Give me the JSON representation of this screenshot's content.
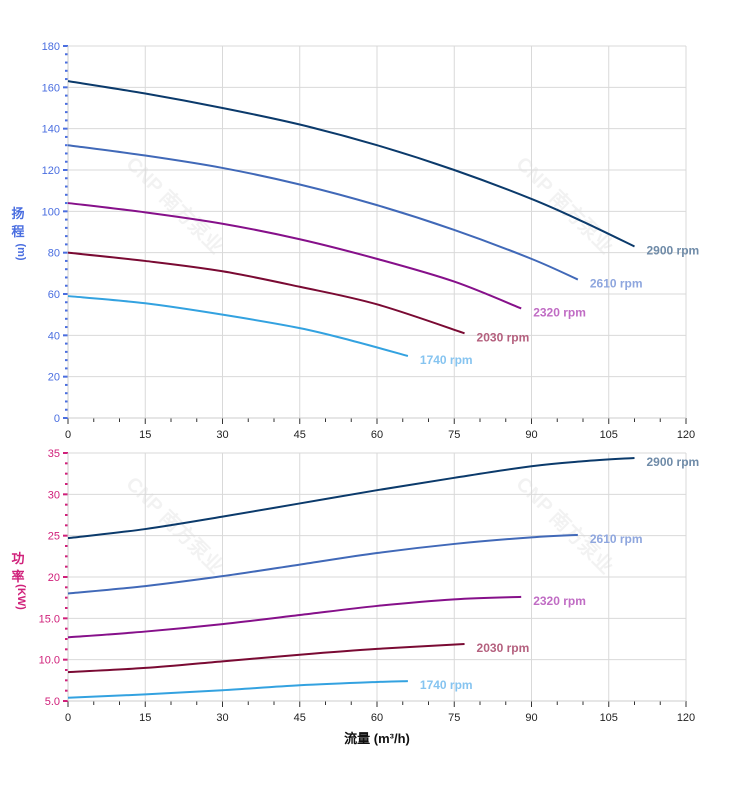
{
  "chart_data": [
    {
      "type": "line",
      "title": "",
      "ylabel": [
        "扬",
        "程",
        "(m)"
      ],
      "xlabel": "",
      "xlim": [
        0,
        120
      ],
      "ylim": [
        0,
        180
      ],
      "x_ticks": [
        "0",
        "15",
        "30",
        "45",
        "60",
        "75",
        "90",
        "105",
        "120"
      ],
      "y_ticks": [
        "0",
        "20",
        "40",
        "60",
        "80",
        "100",
        "120",
        "140",
        "160",
        "180"
      ],
      "axis_color": "#4a6ee0",
      "grid": true,
      "series": [
        {
          "name": "2900 rpm",
          "color": "#0b3a6b",
          "label_color": "#6f8ba8",
          "x": [
            0,
            15,
            30,
            45,
            60,
            75,
            90,
            100,
            110
          ],
          "y": [
            163,
            157,
            150,
            142,
            132,
            120,
            106,
            95,
            83
          ]
        },
        {
          "name": "2610 rpm",
          "color": "#4169b8",
          "label_color": "#8ea6de",
          "x": [
            0,
            15,
            30,
            45,
            60,
            75,
            90,
            99
          ],
          "y": [
            132,
            127,
            121,
            113,
            103,
            91,
            77,
            67
          ]
        },
        {
          "name": "2320 rpm",
          "color": "#86108a",
          "label_color": "#c06cc4",
          "x": [
            0,
            15,
            30,
            45,
            60,
            75,
            88
          ],
          "y": [
            104,
            99.5,
            94,
            86.5,
            77,
            66,
            53
          ]
        },
        {
          "name": "2030 rpm",
          "color": "#7a0a33",
          "label_color": "#b4607e",
          "x": [
            0,
            15,
            30,
            45,
            60,
            77
          ],
          "y": [
            80,
            76,
            71,
            63.5,
            55,
            41
          ]
        },
        {
          "name": "1740 rpm",
          "color": "#33a2e0",
          "label_color": "#86c4f0",
          "x": [
            0,
            15,
            30,
            45,
            55,
            66
          ],
          "y": [
            59,
            55.5,
            50,
            43.5,
            37.5,
            30
          ]
        }
      ]
    },
    {
      "type": "line",
      "title": "",
      "ylabel": [
        "功",
        "率",
        "(KW)"
      ],
      "xlabel": "流量 (m³/h)",
      "xlim": [
        0,
        120
      ],
      "ylim": [
        5,
        35
      ],
      "x_ticks": [
        "0",
        "15",
        "30",
        "45",
        "60",
        "75",
        "90",
        "105",
        "120"
      ],
      "y_ticks": [
        "5.0",
        "10.0",
        "15.0",
        "20",
        "25",
        "30",
        "35"
      ],
      "y_tick_values": [
        5,
        10,
        15,
        20,
        25,
        30,
        35
      ],
      "axis_color": "#d0207a",
      "grid": true,
      "series": [
        {
          "name": "2900 rpm",
          "color": "#0b3a6b",
          "label_color": "#6f8ba8",
          "x": [
            0,
            15,
            30,
            45,
            60,
            75,
            90,
            100,
            110
          ],
          "y": [
            24.7,
            25.8,
            27.3,
            28.9,
            30.5,
            32.0,
            33.4,
            34.0,
            34.4
          ]
        },
        {
          "name": "2610 rpm",
          "color": "#4169b8",
          "label_color": "#8ea6de",
          "x": [
            0,
            15,
            30,
            45,
            60,
            75,
            90,
            99
          ],
          "y": [
            18.0,
            18.9,
            20.1,
            21.5,
            22.9,
            24.0,
            24.8,
            25.1
          ]
        },
        {
          "name": "2320 rpm",
          "color": "#86108a",
          "label_color": "#c06cc4",
          "x": [
            0,
            15,
            30,
            45,
            60,
            75,
            88
          ],
          "y": [
            12.7,
            13.4,
            14.3,
            15.4,
            16.5,
            17.3,
            17.6
          ]
        },
        {
          "name": "2030 rpm",
          "color": "#7a0a33",
          "label_color": "#b4607e",
          "x": [
            0,
            15,
            30,
            45,
            60,
            77
          ],
          "y": [
            8.5,
            9.0,
            9.8,
            10.6,
            11.3,
            11.9
          ]
        },
        {
          "name": "1740 rpm",
          "color": "#33a2e0",
          "label_color": "#86c4f0",
          "x": [
            0,
            15,
            30,
            45,
            60,
            66
          ],
          "y": [
            5.4,
            5.8,
            6.3,
            6.9,
            7.3,
            7.4
          ]
        }
      ]
    }
  ],
  "watermark": "CNP 南方泵业"
}
